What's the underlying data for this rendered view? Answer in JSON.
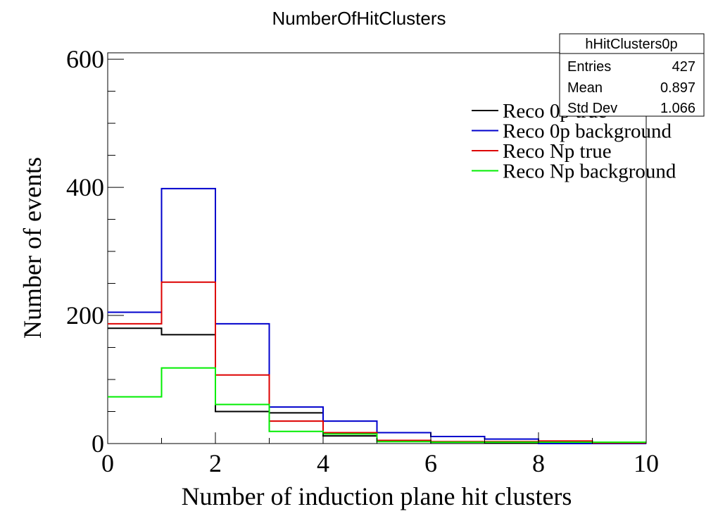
{
  "chart_data": {
    "type": "histogram-step",
    "title": "NumberOfHitClusters",
    "xlabel": "Number of induction plane hit clusters",
    "ylabel": "Number of events",
    "xlim": [
      0,
      10
    ],
    "ylim": [
      0,
      610
    ],
    "x_ticks": [
      "0",
      "2",
      "4",
      "6",
      "8",
      "10"
    ],
    "y_ticks": [
      "0",
      "200",
      "400",
      "600"
    ],
    "bin_edges": [
      0,
      1,
      2,
      3,
      4,
      5,
      6,
      7,
      8,
      9,
      10
    ],
    "series": [
      {
        "name": "Reco 0p true",
        "color": "#000000",
        "values": [
          180,
          170,
          50,
          48,
          12,
          4,
          2,
          1,
          0,
          0
        ]
      },
      {
        "name": "Reco 0p background",
        "color": "#0000cc",
        "values": [
          205,
          398,
          187,
          57,
          35,
          17,
          11,
          7,
          0,
          0
        ]
      },
      {
        "name": "Reco Np true",
        "color": "#dd0000",
        "values": [
          187,
          252,
          107,
          35,
          17,
          5,
          3,
          3,
          4,
          1
        ]
      },
      {
        "name": "Reco Np background",
        "color": "#00ee00",
        "values": [
          73,
          118,
          61,
          19,
          15,
          3,
          2,
          2,
          2,
          2
        ]
      }
    ],
    "stats_box": {
      "title": "hHitClusters0p",
      "rows": [
        {
          "label": "Entries",
          "value": "427"
        },
        {
          "label": "Mean",
          "value": "0.897"
        },
        {
          "label": "Std Dev",
          "value": "1.066"
        }
      ]
    },
    "legend_position": "top-right",
    "grid": false
  }
}
